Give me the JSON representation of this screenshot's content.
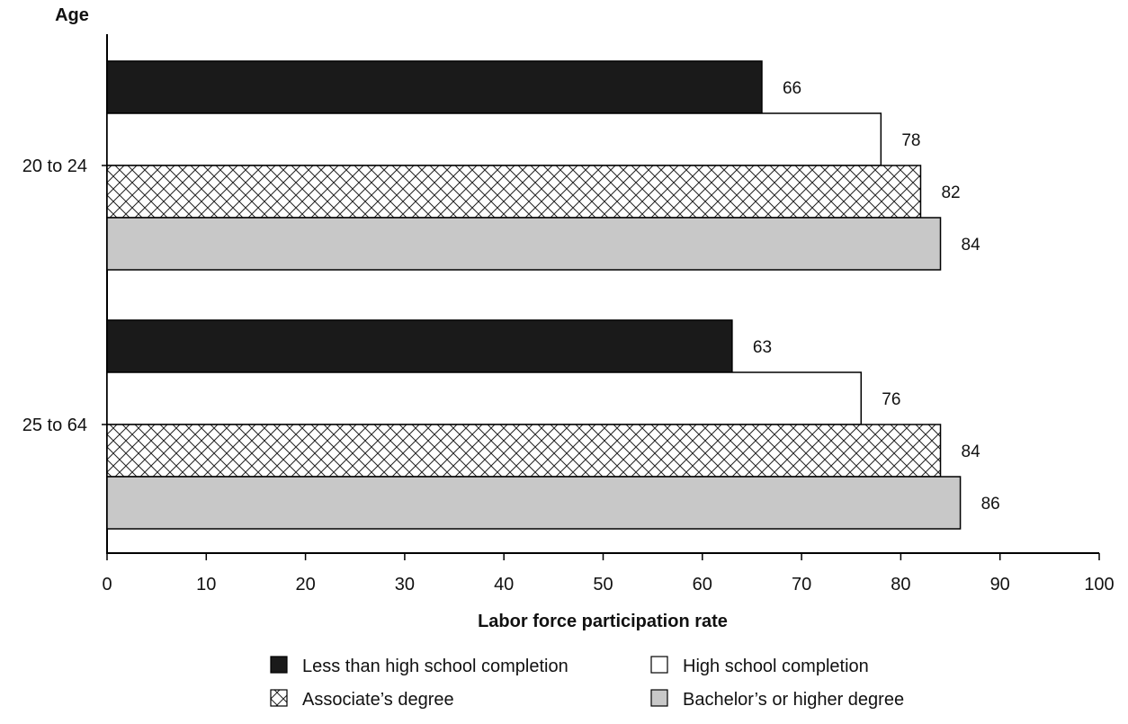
{
  "chart_data": {
    "type": "bar",
    "orientation": "horizontal",
    "categories": [
      "20 to 24",
      "25 to 64"
    ],
    "series": [
      {
        "name": "Less than high school completion",
        "values": [
          66,
          63
        ],
        "fill": "#1a1a1a",
        "pattern": "solid"
      },
      {
        "name": "High school completion",
        "values": [
          78,
          76
        ],
        "fill": "#ffffff",
        "pattern": "solid"
      },
      {
        "name": "Associate’s degree",
        "values": [
          82,
          84
        ],
        "fill": "#ffffff",
        "pattern": "crosshatch"
      },
      {
        "name": "Bachelor’s or higher degree",
        "values": [
          84,
          86
        ],
        "fill": "#c8c8c8",
        "pattern": "solid"
      }
    ],
    "xlabel": "Labor force participation rate",
    "ylabel": "Age",
    "xlim": [
      0,
      100
    ],
    "xticks": [
      0,
      10,
      20,
      30,
      40,
      50,
      60,
      70,
      80,
      90,
      100
    ],
    "grid": false,
    "legend_position": "bottom"
  }
}
